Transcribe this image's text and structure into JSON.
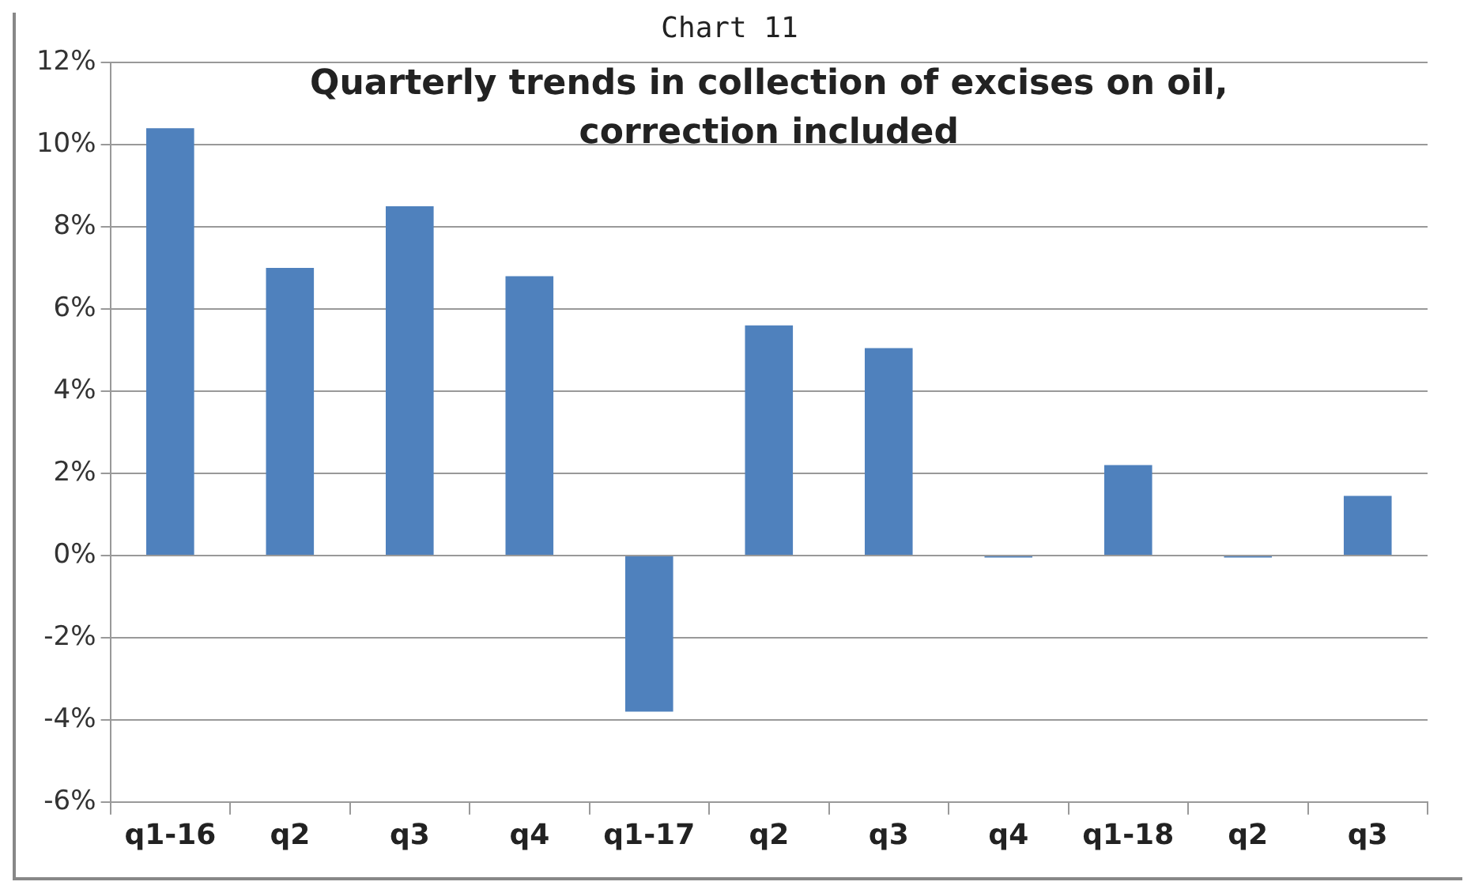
{
  "chart_data": {
    "type": "bar",
    "title": "Chart 11",
    "subtitle": "Quarterly trends in collection of excises on oil,\ncorrection included",
    "categories": [
      "q1-16",
      "q2",
      "q3",
      "q4",
      "q1-17",
      "q2",
      "q3",
      "q4",
      "q1-18",
      "q2",
      "q3"
    ],
    "values": [
      10.4,
      7.0,
      8.5,
      6.8,
      -3.8,
      5.6,
      5.05,
      -0.05,
      2.2,
      -0.05,
      1.45
    ],
    "color": "#4f81bd",
    "ylim": [
      -6,
      12
    ],
    "yticks": [
      {
        "value": -6,
        "label": "-6%"
      },
      {
        "value": -4,
        "label": "-4%"
      },
      {
        "value": -2,
        "label": "-2%"
      },
      {
        "value": 0,
        "label": "0%"
      },
      {
        "value": 2,
        "label": "2%"
      },
      {
        "value": 4,
        "label": "4%"
      },
      {
        "value": 6,
        "label": "6%"
      },
      {
        "value": 8,
        "label": "8%"
      },
      {
        "value": 10,
        "label": "10%"
      },
      {
        "value": 12,
        "label": "12%"
      }
    ],
    "grid": "y"
  }
}
